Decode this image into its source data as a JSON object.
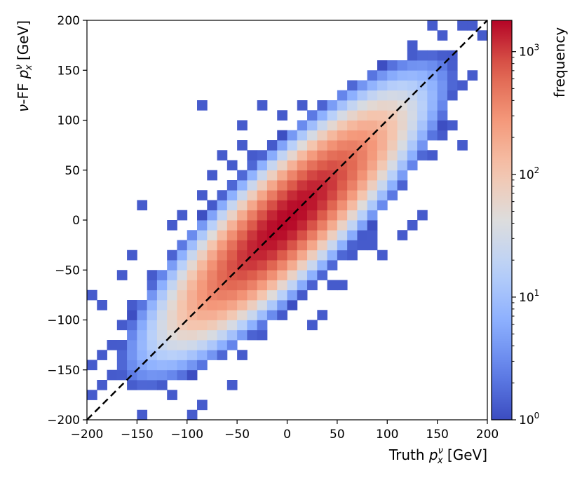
{
  "chart_data": {
    "type": "heatmap",
    "title": "",
    "xlabel": "Truth p_x^ν [GeV]",
    "ylabel": "ν-FF p_x^ν [GeV]",
    "xlim": [
      -200,
      200
    ],
    "ylim": [
      -200,
      200
    ],
    "xticks": [
      -200,
      -150,
      -100,
      -50,
      0,
      50,
      100,
      150,
      200
    ],
    "yticks": [
      -200,
      -150,
      -100,
      -50,
      0,
      50,
      100,
      150,
      200
    ],
    "xtick_labels": [
      "−200",
      "−150",
      "−100",
      "−50",
      "0",
      "50",
      "100",
      "150",
      "200"
    ],
    "ytick_labels": [
      "−200",
      "−150",
      "−100",
      "−50",
      "0",
      "50",
      "100",
      "150",
      "200"
    ],
    "bins_per_axis": 40,
    "bin_width": 10,
    "reference_line": {
      "style": "dashed",
      "color": "#000000",
      "from": [
        -200,
        -200
      ],
      "to": [
        200,
        200
      ]
    },
    "colorbar": {
      "label": "frequency",
      "scale": "log",
      "range": [
        1,
        1800
      ],
      "ticks": [
        1,
        10,
        100,
        1000
      ],
      "tick_labels": [
        [
          "10",
          "0"
        ],
        [
          "10",
          "1"
        ],
        [
          "10",
          "2"
        ],
        [
          "10",
          "3"
        ]
      ],
      "colormap": "coolwarm",
      "colormap_stops": [
        "#3b4cc0",
        "#6282ea",
        "#8db0fe",
        "#b9d0f9",
        "#dddddd",
        "#f5c4ac",
        "#f4987a",
        "#de604d",
        "#b40426"
      ]
    },
    "distribution_model": {
      "peak_counts": 1800,
      "sigma_along_diagonal": 60,
      "sigma_across_diagonal": 17
    },
    "outlier_bins": [
      [
        -195,
        -75
      ],
      [
        -185,
        -85
      ],
      [
        -155,
        -35
      ],
      [
        -165,
        -55
      ],
      [
        -145,
        -195
      ],
      [
        -135,
        -55
      ],
      [
        -125,
        -65
      ],
      [
        -95,
        -145
      ],
      [
        -95,
        -195
      ],
      [
        -85,
        -185
      ],
      [
        -105,
        5
      ],
      [
        -145,
        15
      ],
      [
        -115,
        -5
      ],
      [
        -55,
        -25
      ],
      [
        -75,
        45
      ],
      [
        -55,
        55
      ],
      [
        -45,
        75
      ],
      [
        -35,
        65
      ],
      [
        -25,
        45
      ],
      [
        -65,
        65
      ],
      [
        -85,
        25
      ],
      [
        -45,
        95
      ],
      [
        -115,
        -175
      ],
      [
        -75,
        -125
      ],
      [
        -65,
        -125
      ],
      [
        -55,
        -165
      ],
      [
        -45,
        -135
      ],
      [
        -25,
        -115
      ],
      [
        -5,
        -95
      ],
      [
        -15,
        -85
      ],
      [
        25,
        -105
      ],
      [
        35,
        -95
      ],
      [
        55,
        -65
      ],
      [
        45,
        -65
      ],
      [
        65,
        -35
      ],
      [
        75,
        -25
      ],
      [
        95,
        -35
      ],
      [
        115,
        -15
      ],
      [
        85,
        -15
      ],
      [
        125,
        -5
      ],
      [
        135,
        5
      ],
      [
        -25,
        115
      ],
      [
        -85,
        115
      ],
      [
        -5,
        105
      ],
      [
        15,
        115
      ],
      [
        125,
        175
      ],
      [
        135,
        165
      ],
      [
        155,
        185
      ],
      [
        165,
        165
      ],
      [
        145,
        195
      ],
      [
        185,
        195
      ],
      [
        195,
        185
      ],
      [
        175,
        195
      ],
      [
        165,
        145
      ],
      [
        175,
        135
      ],
      [
        185,
        145
      ],
      [
        155,
        85
      ],
      [
        165,
        95
      ],
      [
        175,
        75
      ],
      [
        145,
        65
      ],
      [
        125,
        55
      ],
      [
        105,
        65
      ],
      [
        115,
        85
      ],
      [
        95,
        35
      ],
      [
        75,
        15
      ],
      [
        55,
        25
      ],
      [
        85,
        -25
      ],
      [
        -95,
        -115
      ],
      [
        -125,
        -105
      ],
      [
        -135,
        -95
      ],
      [
        -105,
        -125
      ],
      [
        -175,
        -155
      ],
      [
        -185,
        -165
      ],
      [
        -195,
        -175
      ],
      [
        -195,
        -145
      ],
      [
        -185,
        -135
      ],
      [
        -175,
        -125
      ],
      [
        -165,
        -105
      ],
      [
        -155,
        -85
      ]
    ]
  }
}
